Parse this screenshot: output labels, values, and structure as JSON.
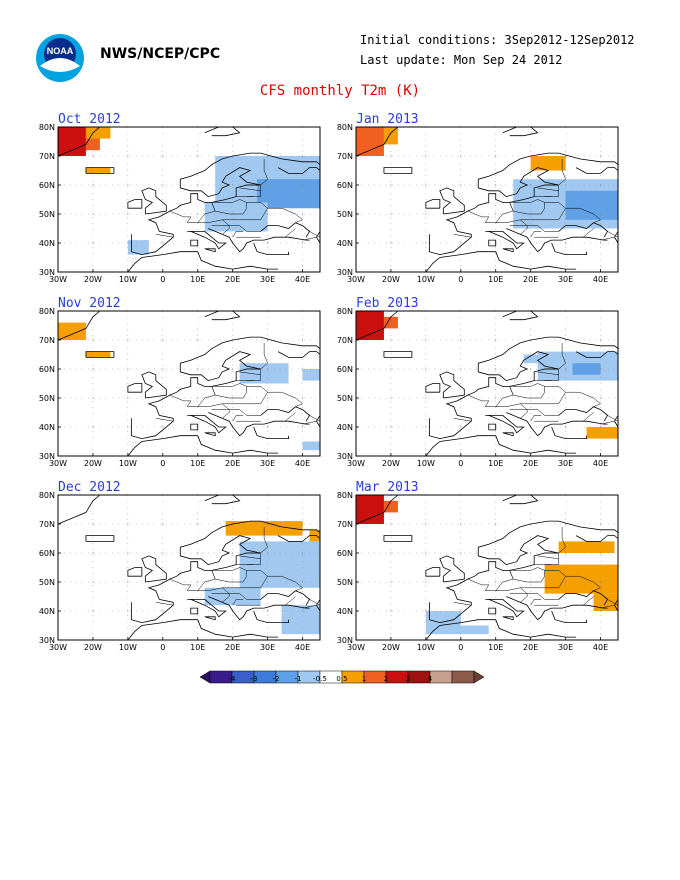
{
  "header": {
    "org": "NWS/NCEP/CPC",
    "initial_conditions": "Initial conditions: 3Sep2012-12Sep2012",
    "last_update": "Last update: Mon Sep 24 2012",
    "title": "CFS monthly T2m (K)"
  },
  "axes": {
    "x_ticks": [
      "30W",
      "20W",
      "10W",
      "0",
      "10E",
      "20E",
      "30E",
      "40E"
    ],
    "y_ticks": [
      "30N",
      "40N",
      "50N",
      "60N",
      "70N",
      "80N"
    ],
    "lon_range": [
      -30,
      45
    ],
    "lat_range": [
      30,
      80
    ]
  },
  "colors": {
    "neg_1_05": "#a0c8f0",
    "neg_2_1": "#5fa0e6",
    "pos_05_1": "#f5a000",
    "pos_1_2": "#f06020",
    "pos_2_3": "#cc1010",
    "ocean": "#ffffff",
    "coast": "#000000"
  },
  "panels": [
    {
      "title": "Oct 2012",
      "anomalies": [
        {
          "cls": "pos_2_3",
          "lon": [
            -30,
            -22
          ],
          "lat": [
            70,
            80
          ]
        },
        {
          "cls": "pos_1_2",
          "lon": [
            -22,
            -18
          ],
          "lat": [
            72,
            78
          ]
        },
        {
          "cls": "pos_05_1",
          "lon": [
            -22,
            -15
          ],
          "lat": [
            76,
            80
          ]
        },
        {
          "cls": "pos_05_1",
          "lon": [
            -22,
            -15
          ],
          "lat": [
            64,
            66
          ]
        },
        {
          "cls": "neg_1_05",
          "lon": [
            15,
            45
          ],
          "lat": [
            52,
            70
          ]
        },
        {
          "cls": "neg_2_1",
          "lon": [
            27,
            45
          ],
          "lat": [
            52,
            62
          ]
        },
        {
          "cls": "neg_1_05",
          "lon": [
            12,
            30
          ],
          "lat": [
            44,
            54
          ]
        },
        {
          "cls": "neg_1_05",
          "lon": [
            -10,
            -4
          ],
          "lat": [
            36,
            41
          ]
        }
      ]
    },
    {
      "title": "Jan 2013",
      "anomalies": [
        {
          "cls": "pos_1_2",
          "lon": [
            -30,
            -22
          ],
          "lat": [
            70,
            80
          ]
        },
        {
          "cls": "pos_05_1",
          "lon": [
            -22,
            -18
          ],
          "lat": [
            74,
            80
          ]
        },
        {
          "cls": "pos_05_1",
          "lon": [
            20,
            30
          ],
          "lat": [
            65,
            70
          ]
        },
        {
          "cls": "neg_1_05",
          "lon": [
            15,
            45
          ],
          "lat": [
            45,
            62
          ]
        },
        {
          "cls": "neg_2_1",
          "lon": [
            30,
            45
          ],
          "lat": [
            48,
            58
          ]
        }
      ]
    },
    {
      "title": "Nov 2012",
      "anomalies": [
        {
          "cls": "pos_05_1",
          "lon": [
            -30,
            -22
          ],
          "lat": [
            70,
            76
          ]
        },
        {
          "cls": "pos_05_1",
          "lon": [
            -22,
            -15
          ],
          "lat": [
            64,
            66
          ]
        },
        {
          "cls": "neg_1_05",
          "lon": [
            22,
            36
          ],
          "lat": [
            55,
            62
          ]
        },
        {
          "cls": "neg_1_05",
          "lon": [
            40,
            45
          ],
          "lat": [
            56,
            60
          ]
        },
        {
          "cls": "neg_1_05",
          "lon": [
            40,
            45
          ],
          "lat": [
            32,
            35
          ]
        }
      ]
    },
    {
      "title": "Feb 2013",
      "anomalies": [
        {
          "cls": "pos_2_3",
          "lon": [
            -30,
            -22
          ],
          "lat": [
            70,
            80
          ]
        },
        {
          "cls": "pos_1_2",
          "lon": [
            -22,
            -18
          ],
          "lat": [
            74,
            78
          ]
        },
        {
          "cls": "neg_1_05",
          "lon": [
            22,
            45
          ],
          "lat": [
            56,
            66
          ]
        },
        {
          "cls": "neg_2_1",
          "lon": [
            32,
            40
          ],
          "lat": [
            58,
            62
          ]
        },
        {
          "cls": "neg_1_05",
          "lon": [
            18,
            24
          ],
          "lat": [
            62,
            65
          ]
        },
        {
          "cls": "pos_05_1",
          "lon": [
            36,
            45
          ],
          "lat": [
            36,
            40
          ]
        }
      ]
    },
    {
      "title": "Dec 2012",
      "anomalies": [
        {
          "cls": "pos_05_1",
          "lon": [
            18,
            40
          ],
          "lat": [
            66,
            71
          ]
        },
        {
          "cls": "pos_05_1",
          "lon": [
            42,
            45
          ],
          "lat": [
            64,
            68
          ]
        },
        {
          "cls": "neg_1_05",
          "lon": [
            22,
            45
          ],
          "lat": [
            48,
            64
          ]
        },
        {
          "cls": "neg_1_05",
          "lon": [
            12,
            28
          ],
          "lat": [
            42,
            48
          ]
        },
        {
          "cls": "neg_1_05",
          "lon": [
            34,
            45
          ],
          "lat": [
            32,
            42
          ]
        }
      ]
    },
    {
      "title": "Mar 2013",
      "anomalies": [
        {
          "cls": "pos_2_3",
          "lon": [
            -30,
            -22
          ],
          "lat": [
            70,
            80
          ]
        },
        {
          "cls": "pos_1_2",
          "lon": [
            -22,
            -18
          ],
          "lat": [
            74,
            78
          ]
        },
        {
          "cls": "pos_05_1",
          "lon": [
            28,
            44
          ],
          "lat": [
            60,
            64
          ]
        },
        {
          "cls": "pos_05_1",
          "lon": [
            24,
            45
          ],
          "lat": [
            46,
            56
          ]
        },
        {
          "cls": "pos_05_1",
          "lon": [
            38,
            45
          ],
          "lat": [
            40,
            46
          ]
        },
        {
          "cls": "neg_1_05",
          "lon": [
            -10,
            0
          ],
          "lat": [
            32,
            40
          ]
        },
        {
          "cls": "neg_1_05",
          "lon": [
            0,
            8
          ],
          "lat": [
            32,
            35
          ]
        }
      ]
    }
  ],
  "colorbar": {
    "labels": [
      "-4",
      "-3",
      "-2",
      "-1",
      "-0.5",
      "0.5",
      "1",
      "2",
      "3",
      "4"
    ],
    "colors": [
      "#3c1c8c",
      "#3a5fc8",
      "#3c7cd8",
      "#5fa0e6",
      "#a0c8f0",
      "#ffffff",
      "#f5a000",
      "#f06020",
      "#cc1010",
      "#a01010",
      "#c8a090",
      "#8c5a4a"
    ]
  }
}
